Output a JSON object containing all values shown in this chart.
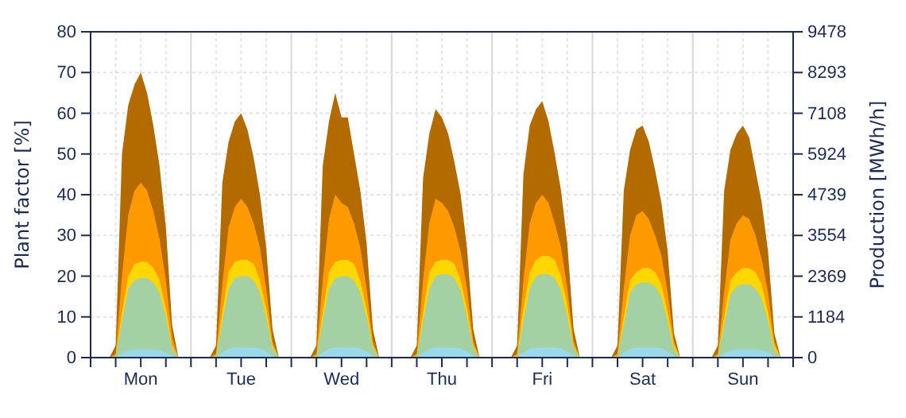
{
  "chart_data": {
    "type": "area",
    "categories": [
      null,
      null,
      null,
      null,
      null,
      null,
      null,
      null,
      "Mon",
      null,
      null,
      null,
      null,
      null,
      null,
      null,
      null,
      null,
      null,
      null,
      null,
      null,
      null,
      null,
      "Tue",
      null,
      null,
      null,
      null,
      null,
      null,
      null,
      null,
      null,
      null,
      null,
      null,
      null,
      null,
      null,
      "Wed",
      null,
      null,
      null,
      null,
      null,
      null,
      null,
      null,
      null,
      null,
      null,
      null,
      null,
      null,
      null,
      "Thu",
      null,
      null,
      null,
      null,
      null,
      null,
      null,
      null,
      null,
      null,
      null,
      null,
      null,
      null,
      null,
      "Fri",
      null,
      null,
      null,
      null,
      null,
      null,
      null,
      null,
      null,
      null,
      null,
      null,
      null,
      null,
      null,
      "Sat",
      null,
      null,
      null,
      null,
      null,
      null,
      null,
      null,
      null,
      null,
      null,
      null,
      null,
      null,
      null,
      "Sun",
      null,
      null,
      null,
      null,
      null,
      null,
      null
    ],
    "series": [
      {
        "color": "#b36b00",
        "values": [
          0,
          0,
          0,
          0,
          3,
          50,
          62,
          67,
          70,
          65,
          57,
          47,
          32,
          8,
          0,
          0,
          0,
          0,
          0,
          0,
          3,
          43,
          53,
          58,
          60,
          56,
          49,
          40,
          27,
          7,
          0,
          0,
          0,
          0,
          0,
          0,
          3,
          47,
          58,
          65,
          59,
          59,
          50,
          41,
          28,
          7,
          0,
          0,
          0,
          0,
          0,
          0,
          3,
          44,
          55,
          61,
          59,
          55,
          48,
          40,
          27,
          7,
          0,
          0,
          0,
          0,
          0,
          0,
          3,
          45,
          57,
          61,
          63,
          58,
          50,
          41,
          28,
          7,
          0,
          0,
          0,
          0,
          0,
          0,
          3,
          41,
          51,
          56,
          57,
          53,
          46,
          38,
          26,
          6,
          0,
          0,
          0,
          0,
          0,
          0,
          3,
          41,
          51,
          55,
          57,
          54,
          46,
          38,
          26,
          6,
          0,
          0
        ]
      },
      {
        "color": "#ff9900",
        "values": [
          0,
          0,
          0,
          0,
          1,
          20,
          35,
          41,
          43,
          41,
          36,
          29,
          19,
          5,
          0,
          0,
          0,
          0,
          0,
          0,
          1,
          18,
          32,
          37,
          39,
          37,
          33,
          27,
          17,
          4,
          0,
          0,
          0,
          0,
          0,
          0,
          1,
          19,
          34,
          40,
          38,
          37,
          33,
          27,
          17,
          4,
          0,
          0,
          0,
          0,
          0,
          0,
          1,
          19,
          33,
          39,
          38,
          36,
          32,
          26,
          17,
          4,
          0,
          0,
          0,
          0,
          0,
          0,
          1,
          19,
          33,
          38,
          40,
          38,
          33,
          27,
          17,
          4,
          0,
          0,
          0,
          0,
          0,
          0,
          1,
          17,
          30,
          35,
          36,
          34,
          30,
          25,
          16,
          4,
          0,
          0,
          0,
          0,
          0,
          0,
          1,
          16,
          29,
          33,
          35,
          34,
          30,
          24,
          16,
          4,
          0,
          0
        ]
      },
      {
        "color": "#ffd700",
        "values": [
          0,
          0,
          0,
          0,
          0.5,
          11,
          20,
          23,
          23.5,
          23.5,
          22,
          19,
          12,
          3,
          0,
          0,
          0,
          0,
          0,
          0,
          0.5,
          11,
          21,
          23.5,
          24,
          24,
          23,
          19,
          12,
          3,
          0,
          0,
          0,
          0,
          0,
          0,
          0.5,
          11,
          21,
          23.5,
          24,
          24,
          23,
          19,
          12,
          3,
          0,
          0,
          0,
          0,
          0,
          0,
          0.5,
          11,
          21,
          23.5,
          24,
          24,
          23,
          19,
          12,
          3,
          0,
          0,
          0,
          0,
          0,
          0,
          0.5,
          12,
          21,
          24,
          25,
          25,
          24,
          20,
          13,
          3,
          0,
          0,
          0,
          0,
          0,
          0,
          0.5,
          10,
          19,
          21,
          22,
          22,
          21,
          18,
          11,
          3,
          0,
          0,
          0,
          0,
          0,
          0,
          0.5,
          10,
          19,
          21,
          22,
          22,
          21,
          18,
          11,
          3,
          0,
          0
        ]
      },
      {
        "color": "#a3d1a3",
        "values": [
          0,
          0,
          0,
          0,
          0.3,
          9,
          17,
          19,
          19.5,
          19.5,
          18.5,
          16,
          10,
          2.5,
          0,
          0,
          0,
          0,
          0,
          0,
          0.3,
          9,
          17,
          19.5,
          20,
          20,
          19,
          16,
          10,
          2.5,
          0,
          0,
          0,
          0,
          0,
          0,
          0.3,
          9,
          17,
          19.5,
          20,
          20,
          19,
          16,
          10,
          2.5,
          0,
          0,
          0,
          0,
          0,
          0,
          0.3,
          9,
          17,
          20,
          20.5,
          20.5,
          19.5,
          16.5,
          10,
          2.5,
          0,
          0,
          0,
          0,
          0,
          0,
          0.3,
          9,
          17,
          20,
          20.5,
          20.5,
          19.5,
          16.5,
          10,
          2.5,
          0,
          0,
          0,
          0,
          0,
          0,
          0.3,
          8,
          16,
          18,
          18.5,
          18.5,
          17.5,
          15,
          9,
          2,
          0,
          0,
          0,
          0,
          0,
          0,
          0.3,
          8,
          15.5,
          17.5,
          18,
          18,
          17,
          14.5,
          9,
          2,
          0,
          0
        ]
      },
      {
        "color": "#99d9ea",
        "values": [
          0,
          0,
          0,
          0,
          0,
          1,
          1.8,
          2,
          2,
          2,
          2,
          1.8,
          1.2,
          0.3,
          0,
          0,
          0,
          0,
          0,
          0,
          0,
          1.2,
          2.2,
          2.5,
          2.5,
          2.5,
          2.5,
          2.3,
          1.5,
          0.4,
          0,
          0,
          0,
          0,
          0,
          0,
          0,
          1.2,
          2.2,
          2.5,
          2.5,
          2.5,
          2.5,
          2.3,
          1.5,
          0.4,
          0,
          0,
          0,
          0,
          0,
          0,
          0,
          1.2,
          2.2,
          2.5,
          2.5,
          2.5,
          2.5,
          2.3,
          1.5,
          0.4,
          0,
          0,
          0,
          0,
          0,
          0,
          0,
          1.2,
          2.2,
          2.5,
          2.5,
          2.5,
          2.5,
          2.3,
          1.5,
          0.4,
          0,
          0,
          0,
          0,
          0,
          0,
          0,
          1.2,
          2.2,
          2.5,
          2.5,
          2.5,
          2.5,
          2.3,
          1.5,
          0.4,
          0,
          0,
          0,
          0,
          0,
          0,
          0,
          1,
          1.8,
          2,
          2,
          2,
          2,
          1.8,
          1.2,
          0.3,
          0,
          0
        ]
      }
    ],
    "ylim": [
      0,
      80
    ],
    "yticks": [
      0,
      10,
      20,
      30,
      40,
      50,
      60,
      70,
      80
    ],
    "y2lim": [
      0,
      9478
    ],
    "y2ticks": [
      0,
      1184,
      2369,
      3554,
      4739,
      5924,
      7108,
      8293,
      9478
    ],
    "ylabel": "Plant factor [%]",
    "y2label": "Production [MWh/h]",
    "grid": true
  }
}
